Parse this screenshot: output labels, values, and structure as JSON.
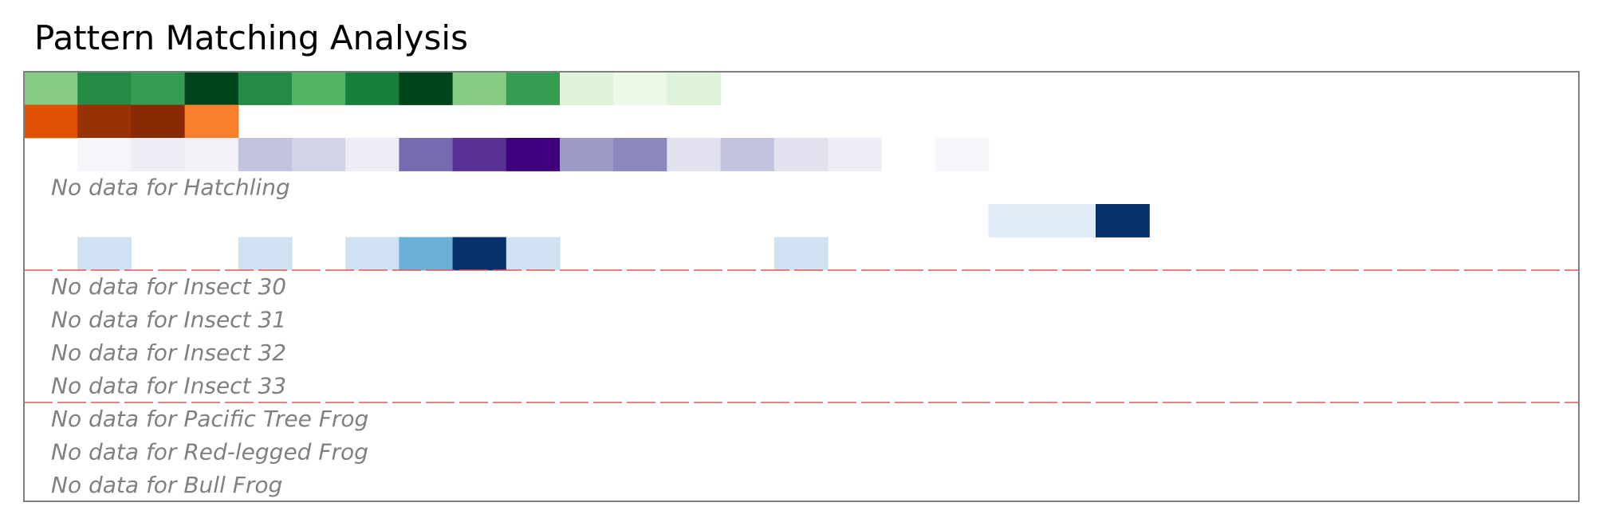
{
  "chart_data": {
    "type": "heatmap",
    "title": "Pattern Matching Analysis",
    "n_columns": 29,
    "colormap_range": [
      0,
      1
    ],
    "rows": [
      {
        "group": 0,
        "cmap": "greens",
        "values": [
          0.45,
          0.75,
          0.68,
          1.0,
          0.75,
          0.58,
          0.8,
          1.0,
          0.45,
          0.68,
          0.15,
          0.07,
          0.15,
          0,
          0,
          0,
          0,
          0,
          0,
          0,
          0,
          0,
          0,
          0,
          0,
          0,
          0,
          0,
          0
        ]
      },
      {
        "group": 0,
        "cmap": "oranges",
        "values": [
          0.72,
          0.92,
          0.97,
          0.55,
          0,
          0,
          0,
          0,
          0,
          0,
          0,
          0,
          0,
          0,
          0,
          0,
          0,
          0,
          0,
          0,
          0,
          0,
          0,
          0,
          0,
          0,
          0,
          0,
          0
        ]
      },
      {
        "group": 0,
        "cmap": "purples",
        "values": [
          0,
          0.05,
          0.13,
          0.08,
          0.35,
          0.28,
          0.13,
          0.68,
          0.85,
          1.0,
          0.5,
          0.58,
          0.2,
          0.35,
          0.2,
          0.13,
          0,
          0.05,
          0,
          0,
          0,
          0,
          0,
          0,
          0,
          0,
          0,
          0,
          0
        ]
      },
      {
        "group": 0,
        "label": "Hatchling",
        "no_data_text": "No data for Hatchling"
      },
      {
        "group": 0,
        "cmap": "blues",
        "values": [
          0,
          0,
          0,
          0,
          0,
          0,
          0,
          0,
          0,
          0,
          0,
          0,
          0,
          0,
          0,
          0,
          0,
          0,
          0.12,
          0.12,
          1.0,
          0,
          0,
          0,
          0,
          0,
          0,
          0,
          0
        ]
      },
      {
        "group": 0,
        "cmap": "blues",
        "values": [
          0,
          0.2,
          0,
          0,
          0.2,
          0,
          0.2,
          0.5,
          1.0,
          0.2,
          0,
          0,
          0,
          0,
          0.2,
          0,
          0,
          0,
          0,
          0,
          0,
          0,
          0,
          0,
          0,
          0,
          0,
          0,
          0
        ]
      },
      {
        "group": 1,
        "label": "Insect 30",
        "no_data_text": "No data for Insect 30"
      },
      {
        "group": 1,
        "label": "Insect 31",
        "no_data_text": "No data for Insect 31"
      },
      {
        "group": 1,
        "label": "Insect 32",
        "no_data_text": "No data for Insect 32"
      },
      {
        "group": 1,
        "label": "Insect 33",
        "no_data_text": "No data for Insect 33"
      },
      {
        "group": 2,
        "label": "Pacific Tree Frog",
        "no_data_text": "No data for Pacific Tree Frog"
      },
      {
        "group": 2,
        "label": "Red-legged Frog",
        "no_data_text": "No data for Red-legged Frog"
      },
      {
        "group": 2,
        "label": "Bull Frog",
        "no_data_text": "No data for Bull Frog"
      }
    ],
    "group_separators": {
      "color": "#e05555",
      "style": "dashed"
    },
    "frame_color": "#808080",
    "no_data_color": "#808080"
  }
}
